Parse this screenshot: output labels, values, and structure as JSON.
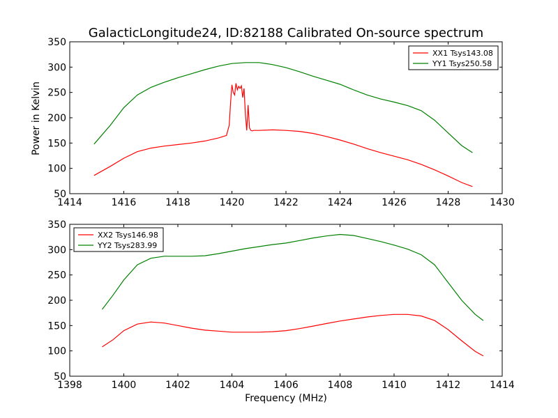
{
  "figure": {
    "title": "GalacticLongitude24, ID:82188 Calibrated On-source spectrum",
    "ylabel": "Power in Kelvin",
    "xlabel": "Frequency (MHz)"
  },
  "chart_data": [
    {
      "type": "line",
      "title": "GalacticLongitude24, ID:82188 Calibrated On-source spectrum",
      "xlabel": "",
      "ylabel": "Power in Kelvin",
      "xlim": [
        1414,
        1430
      ],
      "ylim": [
        50,
        350
      ],
      "xticks": [
        1414,
        1416,
        1418,
        1420,
        1422,
        1424,
        1426,
        1428,
        1430
      ],
      "yticks": [
        50,
        100,
        150,
        200,
        250,
        300,
        350
      ],
      "grid": false,
      "legend": "top-right",
      "series": [
        {
          "name": "XX1 Tsys143.08",
          "color": "#ff0000",
          "x": [
            1414.9,
            1415.5,
            1416.0,
            1416.5,
            1417.0,
            1417.5,
            1418.0,
            1418.5,
            1419.0,
            1419.5,
            1419.8,
            1419.9,
            1419.95,
            1420.0,
            1420.05,
            1420.1,
            1420.15,
            1420.2,
            1420.25,
            1420.3,
            1420.35,
            1420.4,
            1420.45,
            1420.5,
            1420.55,
            1420.6,
            1420.65,
            1420.7,
            1420.75,
            1420.8,
            1421.0,
            1421.5,
            1422.0,
            1422.5,
            1423.0,
            1423.5,
            1424.0,
            1424.5,
            1425.0,
            1425.5,
            1426.0,
            1426.5,
            1427.0,
            1427.5,
            1428.0,
            1428.5,
            1428.9
          ],
          "values": [
            86,
            104,
            120,
            133,
            140,
            144,
            147,
            150,
            154,
            160,
            165,
            185,
            230,
            265,
            250,
            245,
            268,
            255,
            262,
            258,
            263,
            240,
            258,
            205,
            175,
            225,
            180,
            175,
            174,
            175,
            175,
            176,
            175,
            173,
            169,
            163,
            156,
            148,
            139,
            131,
            124,
            117,
            108,
            97,
            85,
            72,
            64
          ]
        },
        {
          "name": "YY1 Tsys250.58",
          "color": "#008000",
          "x": [
            1414.9,
            1415.5,
            1416.0,
            1416.5,
            1417.0,
            1417.5,
            1418.0,
            1418.5,
            1419.0,
            1419.5,
            1420.0,
            1420.5,
            1421.0,
            1421.5,
            1422.0,
            1422.5,
            1423.0,
            1423.5,
            1424.0,
            1424.5,
            1425.0,
            1425.5,
            1426.0,
            1426.5,
            1427.0,
            1427.5,
            1428.0,
            1428.5,
            1428.9
          ],
          "values": [
            148,
            185,
            220,
            245,
            260,
            270,
            279,
            287,
            295,
            302,
            307,
            309,
            309,
            305,
            299,
            291,
            282,
            274,
            266,
            255,
            245,
            237,
            231,
            224,
            214,
            195,
            170,
            145,
            131
          ]
        }
      ]
    },
    {
      "type": "line",
      "title": "",
      "xlabel": "Frequency (MHz)",
      "ylabel": "",
      "xlim": [
        1398,
        1414
      ],
      "ylim": [
        50,
        350
      ],
      "xticks": [
        1398,
        1400,
        1402,
        1404,
        1406,
        1408,
        1410,
        1412,
        1414
      ],
      "yticks": [
        50,
        100,
        150,
        200,
        250,
        300,
        350
      ],
      "grid": false,
      "legend": "top-left",
      "series": [
        {
          "name": "XX2 Tsys146.98",
          "color": "#ff0000",
          "x": [
            1399.2,
            1399.6,
            1400.0,
            1400.5,
            1401.0,
            1401.5,
            1402.0,
            1402.5,
            1403.0,
            1403.5,
            1404.0,
            1404.5,
            1405.0,
            1405.5,
            1406.0,
            1406.5,
            1407.0,
            1407.5,
            1408.0,
            1408.5,
            1409.0,
            1409.5,
            1410.0,
            1410.5,
            1411.0,
            1411.5,
            1412.0,
            1412.5,
            1413.0,
            1413.3
          ],
          "values": [
            108,
            122,
            140,
            153,
            157,
            155,
            150,
            145,
            141,
            139,
            137,
            137,
            137,
            138,
            140,
            144,
            149,
            154,
            159,
            163,
            167,
            170,
            172,
            172,
            169,
            160,
            142,
            120,
            99,
            90
          ]
        },
        {
          "name": "YY2 Tsys283.99",
          "color": "#008000",
          "x": [
            1399.2,
            1399.6,
            1400.0,
            1400.5,
            1401.0,
            1401.5,
            1402.0,
            1402.5,
            1403.0,
            1403.5,
            1404.0,
            1404.5,
            1405.0,
            1405.5,
            1406.0,
            1406.5,
            1407.0,
            1407.5,
            1408.0,
            1408.5,
            1409.0,
            1409.5,
            1410.0,
            1410.5,
            1411.0,
            1411.5,
            1412.0,
            1412.5,
            1413.0,
            1413.3
          ],
          "values": [
            182,
            210,
            240,
            270,
            283,
            287,
            287,
            287,
            288,
            292,
            297,
            302,
            306,
            310,
            313,
            318,
            323,
            327,
            330,
            328,
            322,
            316,
            309,
            301,
            290,
            270,
            235,
            200,
            172,
            160
          ]
        }
      ]
    }
  ]
}
